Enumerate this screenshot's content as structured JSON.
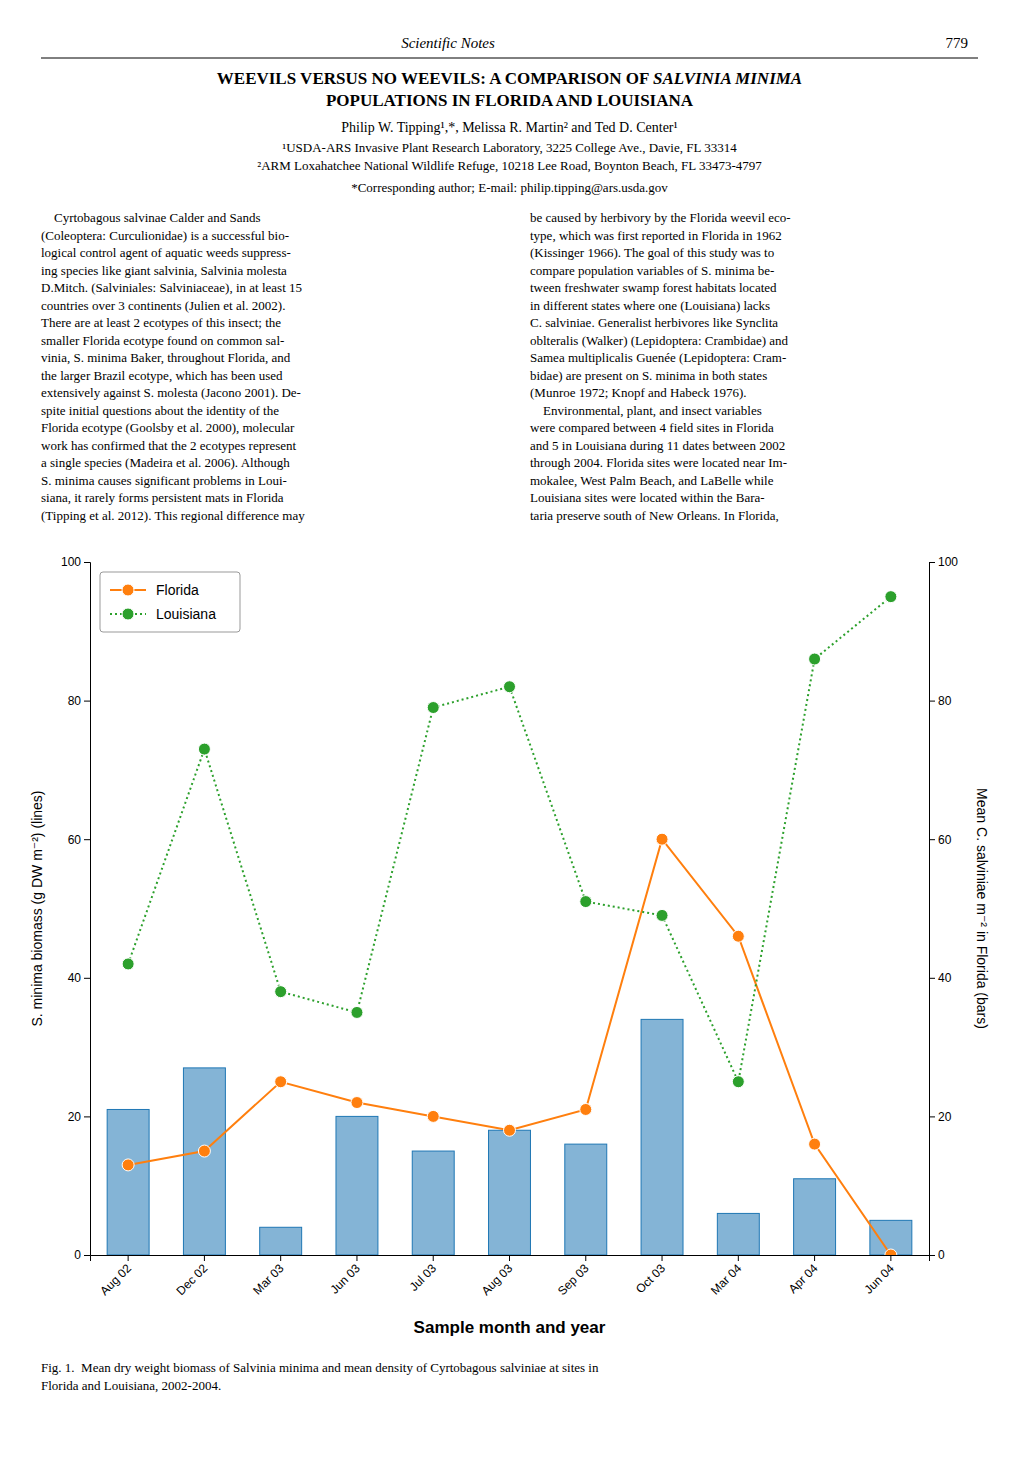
{
  "page": {
    "header_italic": "Scientific Notes",
    "header_number": "779",
    "title_normal": "WEEVILS VERSUS NO WEEVILS: A COMPARISON OF ",
    "title_italic": "SALVINIA MINIMA",
    "title_line2": "POPULATIONS IN FLORIDA AND LOUISIANA",
    "authors_line": "Philip W. Tipping¹,*, Melissa R. Martin² and Ted D. Center¹",
    "affil1": "¹USDA-ARS Invasive Plant Research Laboratory, 3225 College Ave., Davie, FL 33314",
    "affil2": "²ARM Loxahatchee National Wildlife Refuge, 10218 Lee Road, Boynton Beach, FL 33473-4797",
    "corresponding": "*Corresponding author; E-mail: philip.tipping@ars.usda.gov",
    "para1_lines": [
      "    Cyrtobagous salvinae Calder and Sands",
      "(Coleoptera: Curculionidae) is a successful bio-",
      "logical control agent of aquatic weeds suppress-",
      "ing species like giant salvinia, Salvinia molesta",
      "D.Mitch. (Salviniales: Salviniaceae), in at least 15",
      "countries over 3 continents (Julien et al. 2002).",
      "There are at least 2 ecotypes of this insect; the",
      "smaller Florida ecotype found on common sal-",
      "vinia, S. minima Baker, throughout Florida, and",
      "the larger Brazil ecotype, which has been used",
      "extensively against S. molesta (Jacono 2001). De-",
      "spite initial questions about the identity of the",
      "Florida ecotype (Goolsby et al. 2000), molecular",
      "work has confirmed that the 2 ecotypes represent",
      "a single species (Madeira et al. 2006). Although",
      "S. minima causes significant problems in Loui-",
      "siana, it rarely forms persistent mats in Florida",
      "(Tipping et al. 2012). This regional difference may"
    ],
    "para2_lines": [
      "be caused by herbivory by the Florida weevil eco-",
      "type, which was first reported in Florida in 1962",
      "(Kissinger 1966). The goal of this study was to",
      "compare population variables of S. minima be-",
      "tween freshwater swamp forest habitats located",
      "in different states where one (Louisiana) lacks",
      "C. salviniae. Generalist herbivores like Synclita",
      "oblteralis (Walker) (Lepidoptera: Crambidae) and",
      "Samea multiplicalis Guenée (Lepidoptera: Cram-",
      "bidae) are present on S. minima in both states",
      "(Munroe 1972; Knopf and Habeck 1976).",
      "    Environmental, plant, and insect variables",
      "were compared between 4 field sites in Florida",
      "and 5 in Louisiana during 11 dates between 2002",
      "through 2004. Florida sites were located near Im-",
      "mokalee, West Palm Beach, and LaBelle while",
      "Louisiana sites were located within the Bara-",
      "taria preserve south of New Orleans. In Florida,"
    ],
    "caption_lines": [
      "Fig. 1.  Mean dry weight biomass of Salvinia minima and mean density of Cyrtobagous salviniae at sites in",
      "Florida and Louisiana, 2002-2004."
    ]
  },
  "chart_data": {
    "type": "bar",
    "categories": [
      "Aug 02",
      "Dec 02",
      "Mar 03",
      "Jun 03",
      "Jul 03",
      "Aug 03",
      "Sep 03",
      "Oct 03",
      "Mar 04",
      "Apr 04",
      "Jun 04"
    ],
    "xlabel": "Sample month and year",
    "ylabel": "S. minima biomass (g DW m⁻²) (lines)",
    "y2label": "Mean C. salviniae m⁻² in Florida (bars)",
    "ylim": [
      0,
      100
    ],
    "yticks": [
      0,
      20,
      40,
      60,
      80,
      100
    ],
    "y2lim": [
      0,
      100
    ],
    "y2ticks": [
      0,
      20,
      40,
      60,
      80,
      100
    ],
    "grid": false,
    "legend": "upper left",
    "series": [
      {
        "type": "bar",
        "axis": "y2",
        "values": [
          21,
          27,
          4,
          20,
          15,
          18,
          16,
          34,
          6,
          11,
          5
        ]
      },
      {
        "name": "Florida",
        "type": "line",
        "marker": "circle",
        "line_style": "solid",
        "values": [
          13,
          15,
          25,
          22,
          20,
          18,
          21,
          60,
          46,
          16,
          0
        ]
      },
      {
        "name": "Louisiana",
        "type": "line",
        "marker": "circle",
        "line_style": "dotted",
        "values": [
          42,
          73,
          38,
          35,
          79,
          82,
          51,
          49,
          25,
          86,
          95
        ]
      }
    ]
  }
}
